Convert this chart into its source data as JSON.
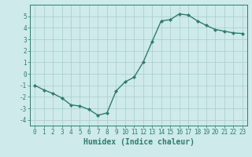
{
  "x": [
    0,
    1,
    2,
    3,
    4,
    5,
    6,
    7,
    8,
    9,
    10,
    11,
    12,
    13,
    14,
    15,
    16,
    17,
    18,
    19,
    20,
    21,
    22,
    23
  ],
  "y": [
    -1.0,
    -1.4,
    -1.7,
    -2.1,
    -2.7,
    -2.8,
    -3.1,
    -3.6,
    -3.4,
    -1.5,
    -0.7,
    -0.3,
    1.0,
    2.8,
    4.6,
    4.7,
    5.2,
    5.1,
    4.6,
    4.2,
    3.85,
    3.7,
    3.55,
    3.5
  ],
  "line_color": "#2e7d6e",
  "marker": "D",
  "marker_size": 2.0,
  "linewidth": 1.0,
  "xlabel": "Humidex (Indice chaleur)",
  "xlabel_fontsize": 7,
  "xlim": [
    -0.5,
    23.5
  ],
  "ylim": [
    -4.5,
    6.0
  ],
  "yticks": [
    -4,
    -3,
    -2,
    -1,
    0,
    1,
    2,
    3,
    4,
    5
  ],
  "xticks": [
    0,
    1,
    2,
    3,
    4,
    5,
    6,
    7,
    8,
    9,
    10,
    11,
    12,
    13,
    14,
    15,
    16,
    17,
    18,
    19,
    20,
    21,
    22,
    23
  ],
  "bg_color": "#ceeaea",
  "grid_color": "#a8cccc",
  "tick_fontsize": 5.5
}
